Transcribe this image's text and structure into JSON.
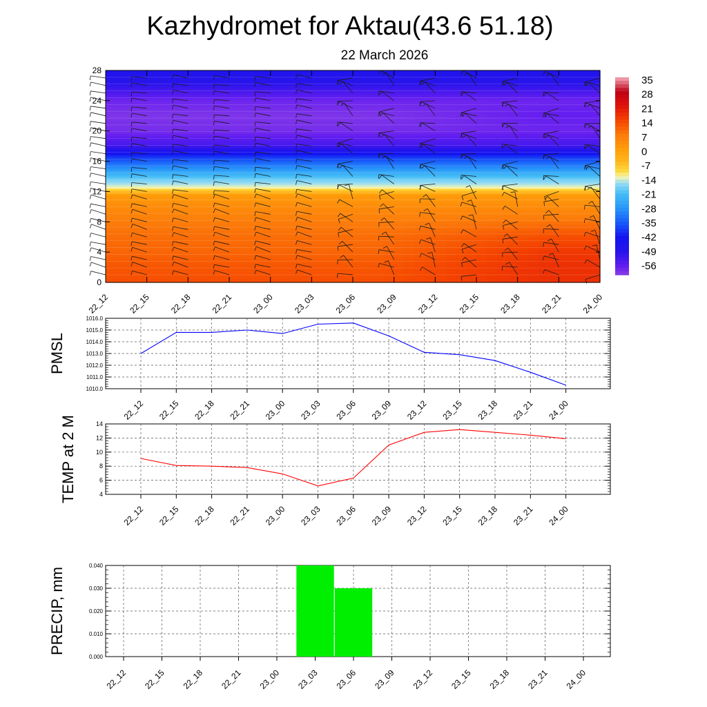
{
  "header": {
    "title": "Kazhydromet for Aktau(43.6 51.18)",
    "date": "22 March 2026"
  },
  "time_labels": [
    "22_12",
    "22_15",
    "22_18",
    "22_21",
    "23_00",
    "23_03",
    "23_06",
    "23_09",
    "23_12",
    "23_15",
    "23_18",
    "23_21",
    "24_00"
  ],
  "colors": {
    "pmsl_line": "#0000ff",
    "temp_line": "#ff0000",
    "precip_bar": "#00ee00"
  },
  "chart_data": [
    {
      "type": "heatmap",
      "title": "",
      "xlabel": "",
      "ylabel": "",
      "categories": [
        "22_12",
        "22_15",
        "22_18",
        "22_21",
        "23_00",
        "23_03",
        "23_06",
        "23_09",
        "23_12",
        "23_15",
        "23_18",
        "23_21",
        "24_00"
      ],
      "y_ticks": [
        0,
        4,
        8,
        12,
        16,
        20,
        24,
        28
      ],
      "ylim": [
        0,
        28
      ],
      "colorbar_labels": [
        "35",
        "28",
        "21",
        "14",
        "7",
        "0",
        "-7",
        "-14",
        "-21",
        "-28",
        "-35",
        "-42",
        "-49",
        "-56"
      ],
      "profile": {
        "levels": [
          0,
          2,
          4,
          6,
          8,
          10,
          11.5,
          12.5,
          13.5,
          15,
          16.5,
          18,
          20,
          22,
          24,
          26,
          28
        ],
        "early": [
          13,
          12,
          10,
          9,
          7,
          4,
          1,
          -13,
          -18,
          -28,
          -38,
          -52,
          -58,
          -59,
          -57,
          -50,
          -46
        ],
        "late": [
          17,
          17,
          16,
          13,
          8,
          4,
          1,
          -13,
          -18,
          -28,
          -38,
          -52,
          -57,
          -56,
          -57,
          -50,
          -46
        ]
      },
      "overlay": "wind barbs"
    },
    {
      "type": "line",
      "ylabel": "PMSL",
      "categories": [
        "22_12",
        "22_15",
        "22_18",
        "22_21",
        "23_00",
        "23_03",
        "23_06",
        "23_09",
        "23_12",
        "23_15",
        "23_18",
        "23_21",
        "24_00"
      ],
      "values": [
        1013.0,
        1014.8,
        1014.8,
        1015.0,
        1014.7,
        1015.5,
        1015.6,
        1014.5,
        1013.1,
        1012.9,
        1012.4,
        1011.4,
        1010.3
      ],
      "y_ticks": [
        "1010.0",
        "1011.0",
        "1012.0",
        "1013.0",
        "1014.0",
        "1015.0",
        "1016.0"
      ],
      "ylim": [
        1010,
        1016
      ],
      "grid": true
    },
    {
      "type": "line",
      "ylabel": "TEMP at 2 M",
      "categories": [
        "22_12",
        "22_15",
        "22_18",
        "22_21",
        "23_00",
        "23_03",
        "23_06",
        "23_09",
        "23_12",
        "23_15",
        "23_18",
        "23_21",
        "24_00"
      ],
      "values": [
        9.1,
        8.1,
        8.0,
        7.8,
        6.9,
        5.2,
        6.3,
        11.0,
        12.8,
        13.2,
        12.8,
        12.4,
        11.9
      ],
      "y_ticks": [
        "4",
        "6",
        "8",
        "10",
        "12",
        "14"
      ],
      "ylim": [
        4,
        14
      ],
      "grid": true
    },
    {
      "type": "bar",
      "ylabel": "PRECIP, mm",
      "categories": [
        "22_12",
        "22_15",
        "22_18",
        "22_21",
        "23_00",
        "23_03",
        "23_06",
        "23_09",
        "23_12",
        "23_15",
        "23_18",
        "23_21",
        "24_00"
      ],
      "values": [
        0,
        0,
        0,
        0,
        0,
        0.04,
        0.03,
        0,
        0,
        0,
        0,
        0,
        0
      ],
      "y_ticks": [
        "0.000",
        "0.010",
        "0.020",
        "0.030",
        "0.040"
      ],
      "ylim": [
        0,
        0.04
      ],
      "grid": true
    }
  ]
}
